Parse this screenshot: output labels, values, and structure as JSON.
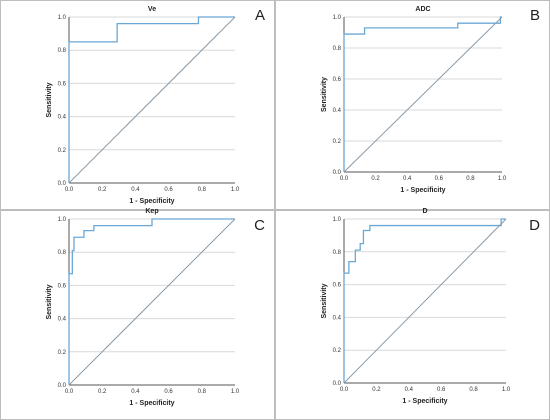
{
  "chart_data": [
    {
      "type": "line",
      "panel": "A",
      "title": "Ve",
      "xlabel": "1 - Specificity",
      "ylabel": "Sensitivity",
      "xlim": [
        0,
        1
      ],
      "ylim": [
        0,
        1
      ],
      "xticks": [
        "0.0",
        "0.2",
        "0.4",
        "0.6",
        "0.8",
        "1.0"
      ],
      "yticks": [
        "0.0",
        "0.2",
        "0.4",
        "0.6",
        "0.8",
        "1.0"
      ],
      "grid": "horizontal",
      "series": [
        {
          "role": "roc",
          "color": "#6aa8d6",
          "x": [
            0,
            0,
            0.29,
            0.29,
            0.78,
            0.78,
            1.0
          ],
          "y": [
            0,
            0.85,
            0.85,
            0.96,
            0.96,
            1.0,
            1.0
          ]
        },
        {
          "role": "reference",
          "color": "#8a9aa8",
          "x": [
            0,
            1
          ],
          "y": [
            0,
            1
          ]
        }
      ]
    },
    {
      "type": "line",
      "panel": "B",
      "title": "ADC",
      "xlabel": "1 - Specificity",
      "ylabel": "Sensitivity",
      "xlim": [
        0,
        1
      ],
      "ylim": [
        0,
        1
      ],
      "xticks": [
        "0.0",
        "0.2",
        "0.4",
        "0.6",
        "0.8",
        "1.0"
      ],
      "yticks": [
        "0.0",
        "0.2",
        "0.4",
        "0.6",
        "0.8",
        "1.0"
      ],
      "grid": "horizontal",
      "series": [
        {
          "role": "roc",
          "color": "#6aa8d6",
          "x": [
            0,
            0,
            0.13,
            0.13,
            0.72,
            0.72,
            0.99,
            0.99,
            1.0
          ],
          "y": [
            0,
            0.89,
            0.89,
            0.93,
            0.93,
            0.96,
            0.96,
            1.0,
            1.0
          ]
        },
        {
          "role": "reference",
          "color": "#8a9aa8",
          "x": [
            0,
            1
          ],
          "y": [
            0,
            1
          ]
        }
      ]
    },
    {
      "type": "line",
      "panel": "C",
      "title": "Kep",
      "xlabel": "1 - Specificity",
      "ylabel": "Sensitivity",
      "xlim": [
        0,
        1
      ],
      "ylim": [
        0,
        1
      ],
      "xticks": [
        "0.0",
        "0.2",
        "0.4",
        "0.6",
        "0.8",
        "1.0"
      ],
      "yticks": [
        "0.0",
        "0.2",
        "0.4",
        "0.6",
        "0.8",
        "1.0"
      ],
      "grid": "horizontal",
      "series": [
        {
          "role": "roc",
          "color": "#6aa8d6",
          "x": [
            0,
            0,
            0.02,
            0.02,
            0.03,
            0.03,
            0.09,
            0.09,
            0.15,
            0.15,
            0.5,
            0.5,
            1.0
          ],
          "y": [
            0,
            0.67,
            0.67,
            0.81,
            0.81,
            0.89,
            0.89,
            0.93,
            0.93,
            0.96,
            0.96,
            1.0,
            1.0
          ]
        },
        {
          "role": "reference",
          "color": "#8a9aa8",
          "x": [
            0,
            1
          ],
          "y": [
            0,
            1
          ]
        }
      ]
    },
    {
      "type": "line",
      "panel": "D",
      "title": "D",
      "xlabel": "1 - Specificity",
      "ylabel": "Sensitivity",
      "xlim": [
        0,
        1
      ],
      "ylim": [
        0,
        1
      ],
      "xticks": [
        "0.0",
        "0.2",
        "0.4",
        "0.6",
        "0.8",
        "1.0"
      ],
      "yticks": [
        "0.0",
        "0.2",
        "0.4",
        "0.6",
        "0.8",
        "1.0"
      ],
      "grid": "horizontal",
      "series": [
        {
          "role": "roc",
          "color": "#6aa8d6",
          "x": [
            0,
            0,
            0.03,
            0.03,
            0.07,
            0.07,
            0.1,
            0.1,
            0.12,
            0.12,
            0.16,
            0.16,
            0.3,
            0.3,
            0.97,
            0.97,
            1.0
          ],
          "y": [
            0,
            0.67,
            0.67,
            0.74,
            0.74,
            0.81,
            0.81,
            0.85,
            0.85,
            0.93,
            0.93,
            0.96,
            0.96,
            0.96,
            0.96,
            1.0,
            1.0
          ]
        },
        {
          "role": "reference",
          "color": "#8a9aa8",
          "x": [
            0,
            1
          ],
          "y": [
            0,
            1
          ]
        }
      ]
    }
  ]
}
